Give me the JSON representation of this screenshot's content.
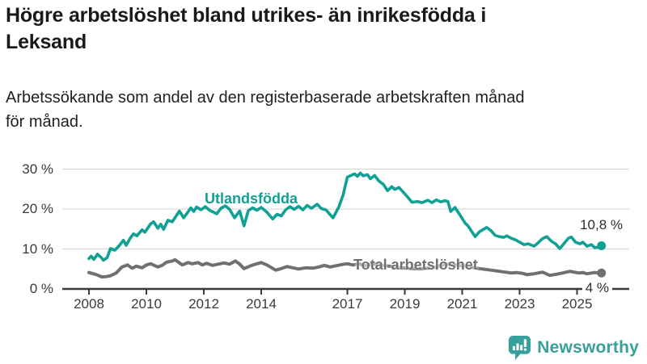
{
  "title_lines": [
    "Högre arbetslöshet bland utrikes- än inrikesfödda i",
    "Leksand"
  ],
  "title_full": "Högre arbetslöshet bland utrikes- än inrikesfödda i Leksand",
  "subtitle_lines": [
    "Arbetssökande som andel av den registerbaserade arbetskraften månad",
    "för månad."
  ],
  "footer": {
    "brand": "Newsworthy",
    "logo_icon": "bar-chart-speech-bubble-icon"
  },
  "colors": {
    "teal_series": "#11a094",
    "gray_series": "#6f6f74",
    "gridline": "#d9d9d9",
    "axis": "#3a3a3a",
    "brand_teal": "#37a09a",
    "end_label_text": "#2e2e2e"
  },
  "chart_data": {
    "type": "line",
    "title": "Högre arbetslöshet bland utrikes- än inrikesfödda i Leksand",
    "xlabel": "",
    "ylabel": "",
    "xlim": [
      2007.1,
      2026.8
    ],
    "ylim": [
      0,
      31
    ],
    "grid": "horizontal",
    "legend_position": "inline-labels",
    "y_ticks": [
      [
        0,
        "0 %"
      ],
      [
        10,
        "10 %"
      ],
      [
        20,
        "20 %"
      ],
      [
        30,
        "30 %"
      ]
    ],
    "x_ticks": [
      [
        2008,
        "2008"
      ],
      [
        2010,
        "2010"
      ],
      [
        2012,
        "2012"
      ],
      [
        2014,
        "2014"
      ],
      [
        2017,
        "2017"
      ],
      [
        2019,
        "2019"
      ],
      [
        2021,
        "2021"
      ],
      [
        2023,
        "2023"
      ],
      [
        2025,
        "2025"
      ]
    ],
    "series": [
      {
        "name": "Utlandsfödda",
        "color": "#11a094",
        "stroke_width": 3.6,
        "end_label": "10,8 %",
        "end_value": 10.8,
        "points": [
          [
            2008.0,
            7.6
          ],
          [
            2008.08,
            8.2
          ],
          [
            2008.17,
            7.4
          ],
          [
            2008.3,
            8.7
          ],
          [
            2008.42,
            7.9
          ],
          [
            2008.5,
            7.2
          ],
          [
            2008.63,
            7.8
          ],
          [
            2008.75,
            10.1
          ],
          [
            2008.9,
            9.7
          ],
          [
            2009.05,
            10.8
          ],
          [
            2009.2,
            12.2
          ],
          [
            2009.3,
            10.9
          ],
          [
            2009.42,
            12.5
          ],
          [
            2009.55,
            13.8
          ],
          [
            2009.67,
            13.3
          ],
          [
            2009.85,
            14.8
          ],
          [
            2009.95,
            14.2
          ],
          [
            2010.15,
            16.3
          ],
          [
            2010.25,
            16.8
          ],
          [
            2010.4,
            15.2
          ],
          [
            2010.5,
            16.2
          ],
          [
            2010.6,
            14.9
          ],
          [
            2010.75,
            17.2
          ],
          [
            2010.9,
            16.8
          ],
          [
            2011.05,
            18.4
          ],
          [
            2011.15,
            19.5
          ],
          [
            2011.3,
            17.8
          ],
          [
            2011.45,
            19.3
          ],
          [
            2011.55,
            20.3
          ],
          [
            2011.65,
            19.4
          ],
          [
            2011.75,
            20.5
          ],
          [
            2011.9,
            19.8
          ],
          [
            2012.05,
            20.6
          ],
          [
            2012.2,
            19.7
          ],
          [
            2012.45,
            18.8
          ],
          [
            2012.6,
            20.2
          ],
          [
            2012.75,
            20.8
          ],
          [
            2012.9,
            19.9
          ],
          [
            2013.07,
            17.8
          ],
          [
            2013.25,
            19.5
          ],
          [
            2013.4,
            15.8
          ],
          [
            2013.55,
            19.6
          ],
          [
            2013.7,
            20.3
          ],
          [
            2013.85,
            19.7
          ],
          [
            2014.0,
            20.4
          ],
          [
            2014.2,
            19.2
          ],
          [
            2014.4,
            17.5
          ],
          [
            2014.55,
            18.7
          ],
          [
            2014.7,
            18.3
          ],
          [
            2014.85,
            19.8
          ],
          [
            2015.0,
            20.6
          ],
          [
            2015.15,
            19.9
          ],
          [
            2015.3,
            20.7
          ],
          [
            2015.45,
            19.8
          ],
          [
            2015.6,
            20.9
          ],
          [
            2015.75,
            20.2
          ],
          [
            2015.95,
            21.2
          ],
          [
            2016.1,
            20.1
          ],
          [
            2016.25,
            19.8
          ],
          [
            2016.5,
            17.8
          ],
          [
            2016.7,
            20.5
          ],
          [
            2016.85,
            23.5
          ],
          [
            2017.0,
            28.0
          ],
          [
            2017.1,
            28.3
          ],
          [
            2017.25,
            28.8
          ],
          [
            2017.35,
            28.2
          ],
          [
            2017.45,
            29.0
          ],
          [
            2017.55,
            28.3
          ],
          [
            2017.7,
            28.6
          ],
          [
            2017.8,
            27.6
          ],
          [
            2017.95,
            28.4
          ],
          [
            2018.1,
            27.0
          ],
          [
            2018.25,
            26.2
          ],
          [
            2018.4,
            24.6
          ],
          [
            2018.55,
            25.6
          ],
          [
            2018.65,
            24.9
          ],
          [
            2018.8,
            25.4
          ],
          [
            2018.95,
            24.2
          ],
          [
            2019.1,
            23.0
          ],
          [
            2019.25,
            21.7
          ],
          [
            2019.45,
            21.9
          ],
          [
            2019.6,
            21.6
          ],
          [
            2019.8,
            22.2
          ],
          [
            2019.95,
            21.6
          ],
          [
            2020.1,
            22.3
          ],
          [
            2020.25,
            21.8
          ],
          [
            2020.4,
            22.1
          ],
          [
            2020.5,
            21.9
          ],
          [
            2020.6,
            19.4
          ],
          [
            2020.75,
            20.4
          ],
          [
            2020.95,
            18.2
          ],
          [
            2021.1,
            16.5
          ],
          [
            2021.2,
            15.8
          ],
          [
            2021.45,
            13.1
          ],
          [
            2021.6,
            14.3
          ],
          [
            2021.85,
            15.4
          ],
          [
            2022.0,
            14.6
          ],
          [
            2022.15,
            13.4
          ],
          [
            2022.3,
            13.1
          ],
          [
            2022.45,
            12.9
          ],
          [
            2022.55,
            13.3
          ],
          [
            2022.7,
            12.7
          ],
          [
            2022.85,
            12.3
          ],
          [
            2023.0,
            11.7
          ],
          [
            2023.15,
            11.1
          ],
          [
            2023.3,
            11.3
          ],
          [
            2023.5,
            10.7
          ],
          [
            2023.65,
            11.6
          ],
          [
            2023.8,
            12.6
          ],
          [
            2023.95,
            13.1
          ],
          [
            2024.1,
            12.0
          ],
          [
            2024.25,
            11.3
          ],
          [
            2024.4,
            10.1
          ],
          [
            2024.55,
            11.4
          ],
          [
            2024.7,
            12.7
          ],
          [
            2024.8,
            13.0
          ],
          [
            2024.95,
            11.7
          ],
          [
            2025.1,
            11.3
          ],
          [
            2025.2,
            11.7
          ],
          [
            2025.35,
            10.7
          ],
          [
            2025.5,
            11.1
          ],
          [
            2025.62,
            10.3
          ],
          [
            2025.75,
            10.5
          ],
          [
            2025.85,
            10.8
          ]
        ]
      },
      {
        "name": "Total arbetslöshet",
        "color": "#6f6f74",
        "stroke_width": 4,
        "end_label": "4 %",
        "end_value": 4.0,
        "points": [
          [
            2008.0,
            4.1
          ],
          [
            2008.25,
            3.6
          ],
          [
            2008.45,
            3.0
          ],
          [
            2008.6,
            3.1
          ],
          [
            2008.75,
            3.3
          ],
          [
            2008.95,
            4.0
          ],
          [
            2009.15,
            5.5
          ],
          [
            2009.35,
            6.0
          ],
          [
            2009.5,
            5.2
          ],
          [
            2009.65,
            5.7
          ],
          [
            2009.85,
            5.3
          ],
          [
            2010.0,
            6.0
          ],
          [
            2010.15,
            6.3
          ],
          [
            2010.4,
            5.5
          ],
          [
            2010.55,
            5.9
          ],
          [
            2010.7,
            6.7
          ],
          [
            2010.9,
            7.0
          ],
          [
            2011.0,
            7.3
          ],
          [
            2011.25,
            6.0
          ],
          [
            2011.45,
            6.6
          ],
          [
            2011.6,
            6.3
          ],
          [
            2011.8,
            6.6
          ],
          [
            2011.95,
            6.0
          ],
          [
            2012.1,
            6.4
          ],
          [
            2012.3,
            5.9
          ],
          [
            2012.5,
            6.2
          ],
          [
            2012.7,
            6.5
          ],
          [
            2012.9,
            6.2
          ],
          [
            2013.1,
            7.0
          ],
          [
            2013.25,
            6.2
          ],
          [
            2013.4,
            5.1
          ],
          [
            2013.6,
            5.7
          ],
          [
            2013.8,
            6.2
          ],
          [
            2014.0,
            6.6
          ],
          [
            2014.2,
            6.0
          ],
          [
            2014.5,
            4.7
          ],
          [
            2014.7,
            5.1
          ],
          [
            2014.9,
            5.6
          ],
          [
            2015.1,
            5.3
          ],
          [
            2015.3,
            5.0
          ],
          [
            2015.55,
            5.3
          ],
          [
            2015.8,
            5.2
          ],
          [
            2016.0,
            5.5
          ],
          [
            2016.2,
            5.9
          ],
          [
            2016.4,
            5.5
          ],
          [
            2016.6,
            5.8
          ],
          [
            2016.8,
            6.1
          ],
          [
            2017.0,
            6.3
          ],
          [
            2017.2,
            6.0
          ],
          [
            2017.4,
            6.3
          ],
          [
            2017.6,
            5.8
          ],
          [
            2017.8,
            6.1
          ],
          [
            2018.0,
            6.2
          ],
          [
            2018.3,
            5.8
          ],
          [
            2018.6,
            5.6
          ],
          [
            2018.9,
            5.3
          ],
          [
            2019.2,
            5.1
          ],
          [
            2019.5,
            5.0
          ],
          [
            2019.8,
            5.2
          ],
          [
            2020.1,
            5.5
          ],
          [
            2020.4,
            6.2
          ],
          [
            2020.7,
            6.0
          ],
          [
            2021.0,
            5.8
          ],
          [
            2021.3,
            5.5
          ],
          [
            2021.6,
            5.1
          ],
          [
            2021.9,
            4.8
          ],
          [
            2022.2,
            4.5
          ],
          [
            2022.5,
            4.2
          ],
          [
            2022.7,
            4.0
          ],
          [
            2022.9,
            4.1
          ],
          [
            2023.1,
            3.9
          ],
          [
            2023.25,
            3.6
          ],
          [
            2023.5,
            3.8
          ],
          [
            2023.8,
            4.2
          ],
          [
            2024.05,
            3.4
          ],
          [
            2024.3,
            3.7
          ],
          [
            2024.5,
            4.0
          ],
          [
            2024.75,
            4.4
          ],
          [
            2025.05,
            4.0
          ],
          [
            2025.2,
            4.1
          ],
          [
            2025.35,
            3.8
          ],
          [
            2025.6,
            4.1
          ],
          [
            2025.85,
            4.0
          ]
        ]
      }
    ]
  }
}
